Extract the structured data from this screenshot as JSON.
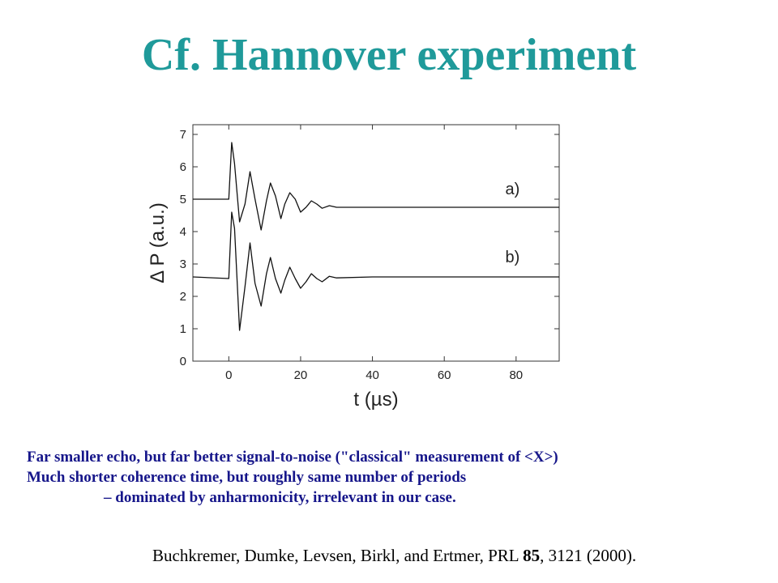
{
  "slide": {
    "title": "Cf. Hannover experiment"
  },
  "chart_data": {
    "type": "line",
    "xlabel": "t (µs)",
    "ylabel": "Δ P (a.u.)",
    "xlim": [
      -10,
      92
    ],
    "ylim": [
      0,
      7.3
    ],
    "xticks": [
      0,
      20,
      40,
      60,
      80
    ],
    "yticks": [
      0,
      1,
      2,
      3,
      4,
      5,
      6,
      7
    ],
    "grid": false,
    "series": [
      {
        "name": "a)",
        "x": [
          -10,
          0,
          0.8,
          1.6,
          3,
          4.5,
          5.9,
          7.3,
          9,
          10.5,
          11.6,
          13,
          14.5,
          15.6,
          17,
          18.5,
          20,
          21.5,
          23,
          24.5,
          26,
          28,
          30,
          40,
          60,
          80,
          92
        ],
        "y": [
          5.0,
          5.0,
          6.75,
          6.1,
          4.3,
          4.85,
          5.85,
          5.0,
          4.05,
          4.95,
          5.5,
          5.1,
          4.4,
          4.85,
          5.2,
          5.0,
          4.6,
          4.75,
          4.95,
          4.85,
          4.72,
          4.8,
          4.75,
          4.75,
          4.75,
          4.75,
          4.75
        ]
      },
      {
        "name": "b)",
        "x": [
          -10,
          0,
          0.8,
          1.6,
          3,
          4.5,
          5.9,
          7.3,
          9,
          10.5,
          11.6,
          13,
          14.5,
          15.6,
          17,
          18.5,
          20,
          21.5,
          23,
          24.5,
          26,
          28,
          30,
          40,
          60,
          80,
          92
        ],
        "y": [
          2.6,
          2.55,
          4.6,
          4.1,
          0.95,
          2.3,
          3.65,
          2.4,
          1.7,
          2.7,
          3.2,
          2.55,
          2.1,
          2.5,
          2.9,
          2.55,
          2.25,
          2.45,
          2.7,
          2.55,
          2.45,
          2.62,
          2.57,
          2.6,
          2.6,
          2.6,
          2.6
        ]
      }
    ]
  },
  "notes": {
    "line1": "Far smaller echo, but far better signal-to-noise (\"classical\" measurement of <X>)",
    "line2": "Much shorter coherence time, but roughly same number of periods",
    "line3": "– dominated by anharmonicity, irrelevant in our case."
  },
  "citation": {
    "authors": "Buchkremer, Dumke, Levsen, Birkl, and Ertmer, PRL ",
    "volume": "85",
    "pages": ", 3121 (2000)."
  }
}
